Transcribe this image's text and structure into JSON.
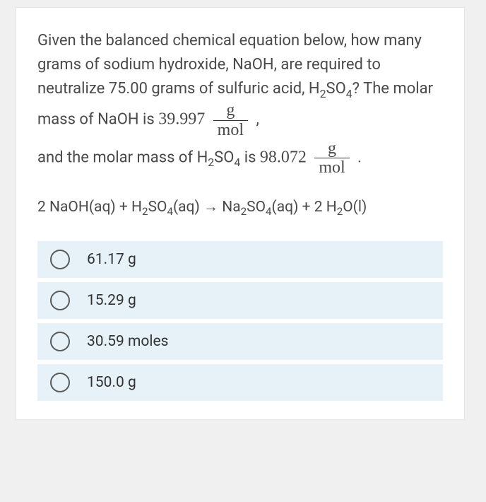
{
  "question": {
    "intro": "Given the balanced chemical equation below, how many grams of sodium hydroxide, NaOH, are required to neutralize 75.00 grams of sulfuric acid, H",
    "h2so4_sub1": "2",
    "h2so4_mid": "SO",
    "h2so4_sub2": "4",
    "after_h2so4": "? The molar mass of NaOH is ",
    "naoh_mm": "39.997",
    "frac_g": "g",
    "frac_mol": "mol",
    "comma": " ,",
    "line3_pre": "and the molar mass of H",
    "line3_sub1": "2",
    "line3_mid": "SO",
    "line3_sub2": "4",
    "line3_post": " is ",
    "h2so4_mm": "98.072",
    "period": " ."
  },
  "equation": {
    "p1": "2 NaOH(aq) + H",
    "s1": "2",
    "p2": "SO",
    "s2": "4",
    "p3": "(aq) → Na",
    "s3": "2",
    "p4": "SO",
    "s4": "4",
    "p5": "(aq) + 2 H",
    "s5": "2",
    "p6": "O(l)"
  },
  "options": [
    {
      "label": "61.17 g"
    },
    {
      "label": "15.29 g"
    },
    {
      "label": "30.59 moles"
    },
    {
      "label": "150.0 g"
    }
  ],
  "style": {
    "card_bg": "#ffffff",
    "option_bg": "#e6f2f7",
    "text_color": "#4a4a4a",
    "radio_border": "#5a5a5a",
    "question_fontsize": 22,
    "option_fontsize": 21
  }
}
